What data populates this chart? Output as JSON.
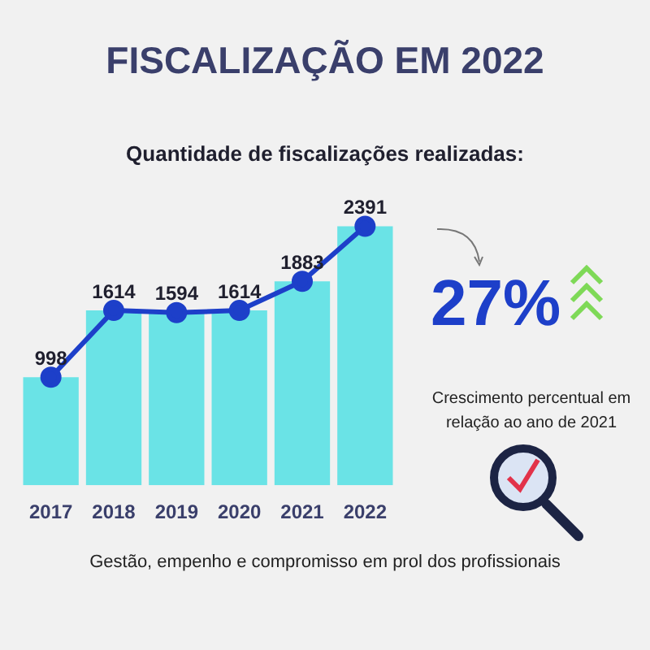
{
  "chart_data": {
    "type": "bar",
    "title": "FISCALIZAÇÃO EM 2022",
    "subtitle": "Quantidade de fiscalizações realizadas:",
    "categories": [
      "2017",
      "2018",
      "2019",
      "2020",
      "2021",
      "2022"
    ],
    "series": [
      {
        "color": "#6ae3e6",
        "values": [
          998,
          1614,
          1594,
          1614,
          1883,
          2391
        ],
        "value_labels": [
          "998",
          "1614",
          "1594",
          "1614",
          "1883",
          "2391"
        ]
      },
      {
        "type": "line",
        "color": "#1d3fc9",
        "values": [
          998,
          1614,
          1594,
          1614,
          1883,
          2391
        ]
      }
    ],
    "grid": false,
    "legend": false,
    "marker": "circle",
    "line_style": "solid",
    "annotations": [
      "27%",
      "Crescimento percentual em relação ao ano de 2021",
      "Gestão, empenho e compromisso em prol dos profissionais"
    ]
  }
}
